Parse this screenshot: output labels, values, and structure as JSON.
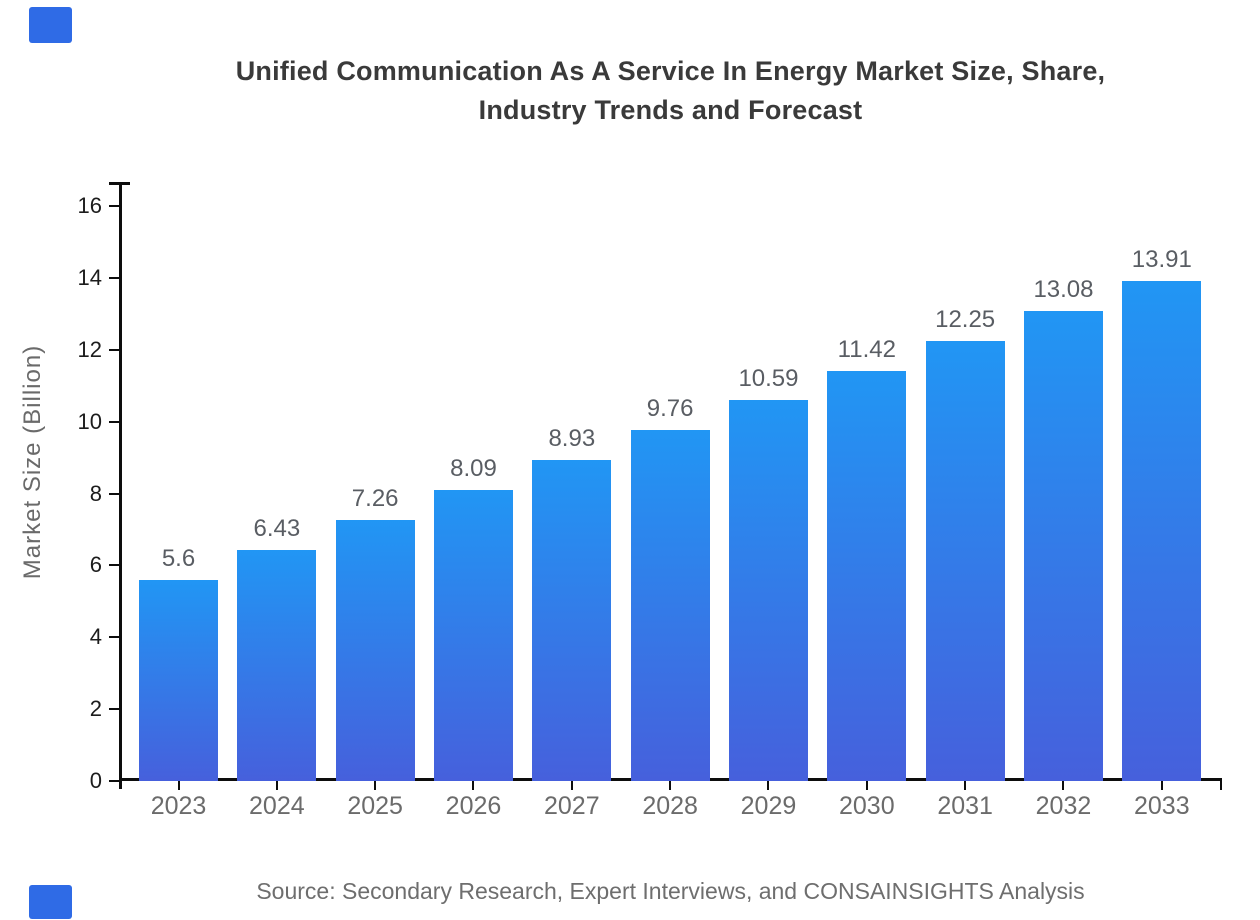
{
  "title": {
    "line1": "Unified Communication As A Service In Energy Market Size, Share,",
    "line2": "Industry Trends and Forecast"
  },
  "source": "Source: Secondary Research, Expert Interviews, and CONSAINSIGHTS Analysis",
  "colors": {
    "bar_top": "#2196f4",
    "bar_bottom": "#4660dc",
    "axis": "#0d0d0d",
    "title_text": "#3a3a3a",
    "y_tick_label": "#1c1c1c",
    "x_tick_label": "#6b6b6b",
    "value_label": "#595d63",
    "source_text": "#6e6e6e",
    "corner_accent": "#2f6be6"
  },
  "chart_data": {
    "type": "bar",
    "title": "Unified Communication As A Service In Energy Market Size, Share, Industry Trends and Forecast",
    "categories": [
      "2023",
      "2024",
      "2025",
      "2026",
      "2027",
      "2028",
      "2029",
      "2030",
      "2031",
      "2032",
      "2033"
    ],
    "values": [
      5.6,
      6.43,
      7.26,
      8.09,
      8.93,
      9.76,
      10.59,
      11.42,
      12.25,
      13.08,
      13.91
    ],
    "value_labels": [
      "5.6",
      "6.43",
      "7.26",
      "8.09",
      "8.93",
      "9.76",
      "10.59",
      "11.42",
      "12.25",
      "13.08",
      "13.91"
    ],
    "xlabel": "",
    "ylabel": "Market Size (Billion)",
    "ylim": [
      0,
      16.7
    ],
    "yticks": [
      0,
      2,
      4,
      6,
      8,
      10,
      12,
      14,
      16
    ],
    "grid": false,
    "legend": "none",
    "bar_gradient": [
      "#2196f4",
      "#4660dc"
    ]
  }
}
